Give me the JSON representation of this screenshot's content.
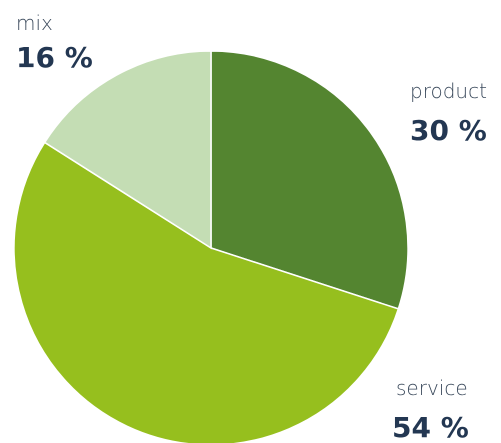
{
  "chart_data": {
    "type": "pie",
    "slices": [
      {
        "label": "product",
        "value": 30,
        "display": "30 %",
        "color": "#548530"
      },
      {
        "label": "service",
        "value": 54,
        "display": "54 %",
        "color": "#96bf1e"
      },
      {
        "label": "mix",
        "value": 16,
        "display": "16 %",
        "color": "#c4ddb4"
      }
    ]
  }
}
